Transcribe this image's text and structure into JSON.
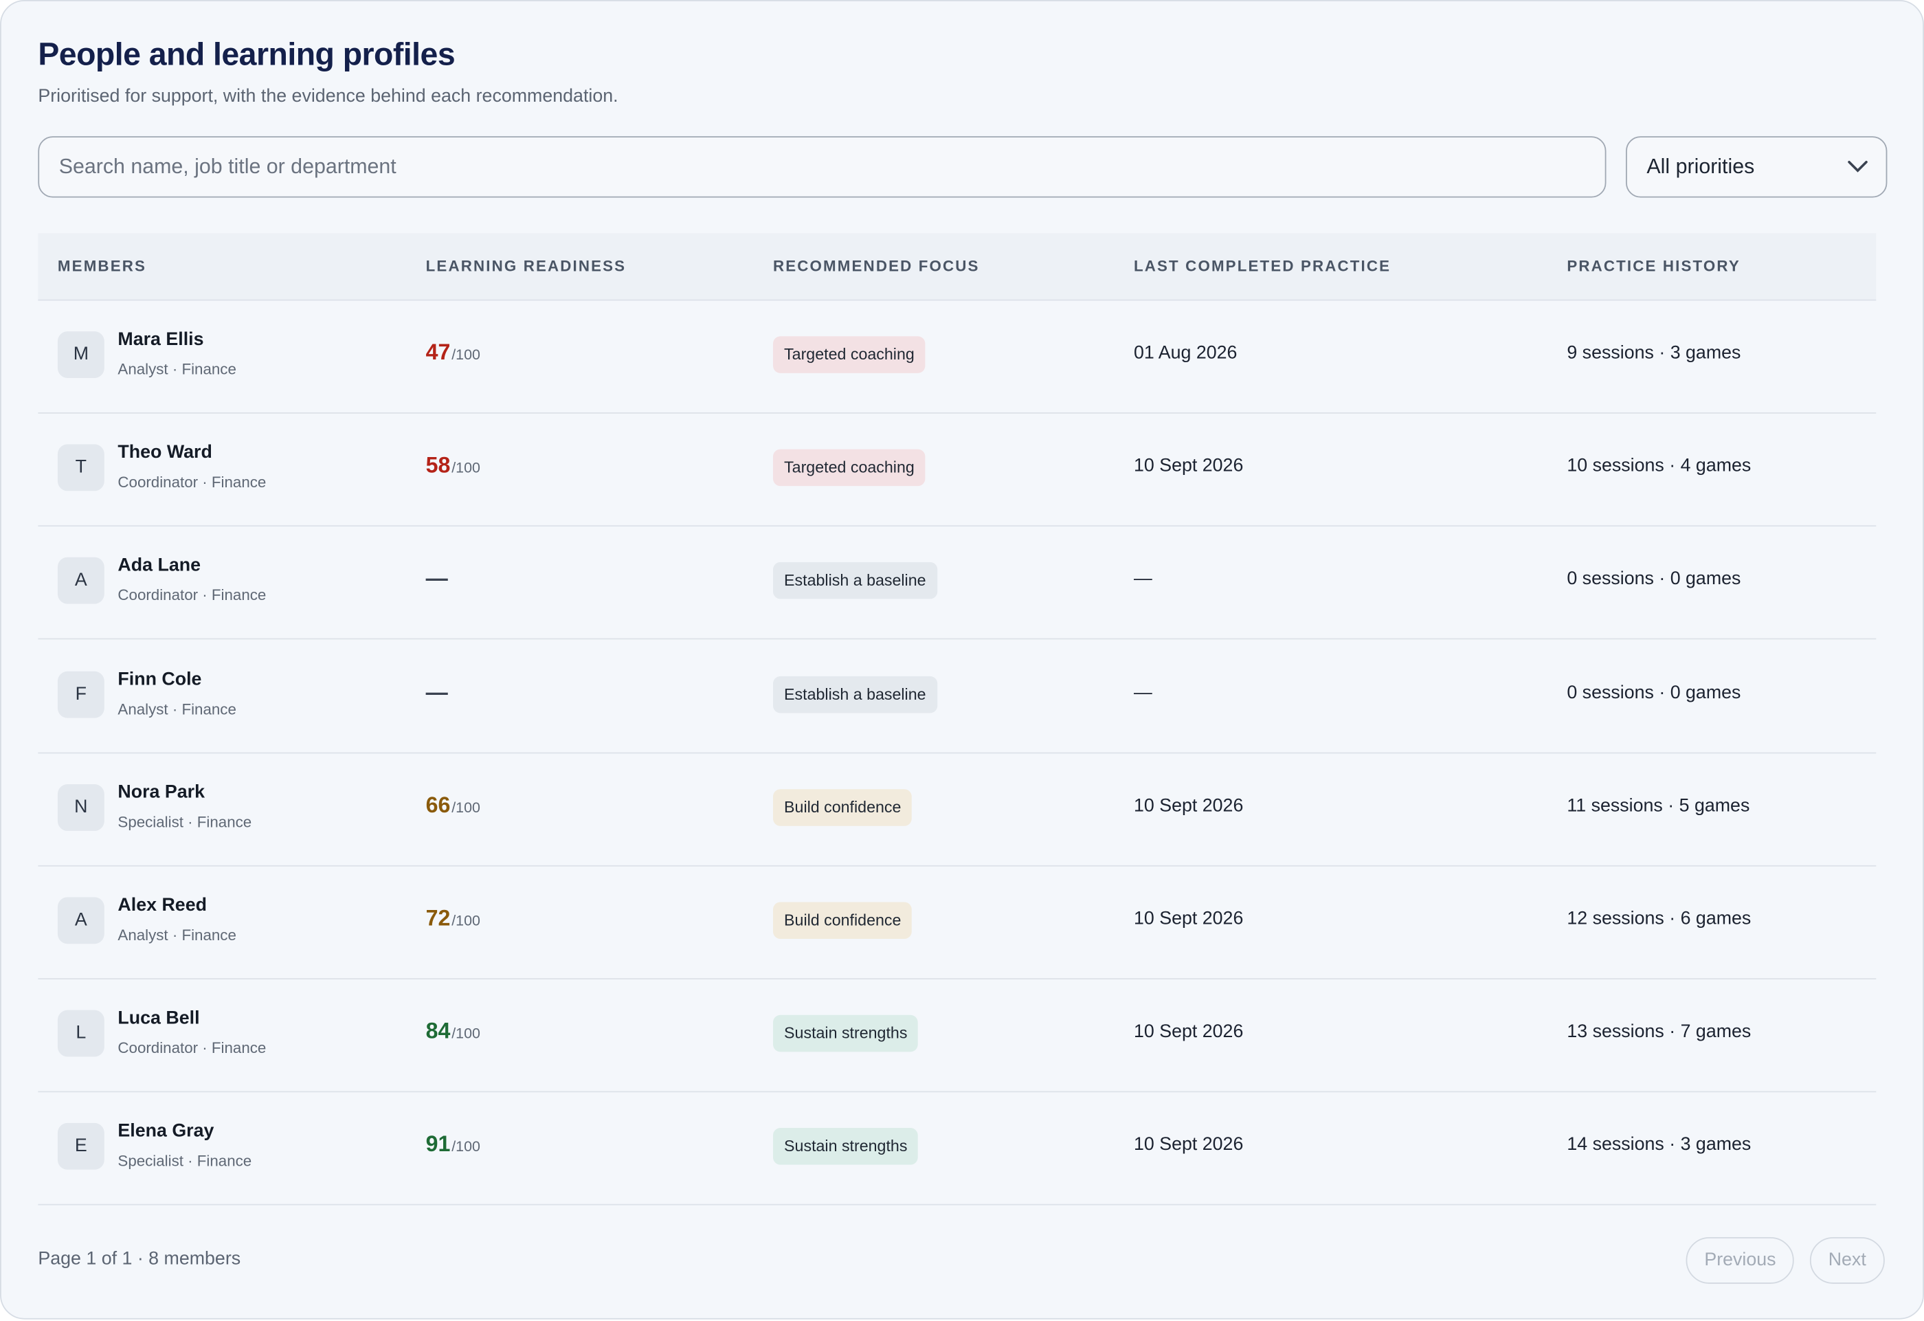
{
  "header": {
    "title": "People and learning profiles",
    "subtitle": "Prioritised for support, with the evidence behind each recommendation."
  },
  "filters": {
    "search_placeholder": "Search name, job title or department",
    "priority": "All priorities"
  },
  "table": {
    "columns": [
      "MEMBERS",
      "LEARNING READINESS",
      "RECOMMENDED FOCUS",
      "LAST COMPLETED PRACTICE",
      "PRACTICE HISTORY"
    ],
    "rows": [
      {
        "initial": "M",
        "name": "Mara Ellis",
        "role": "Analyst · Finance",
        "score": "47",
        "score_max": "/100",
        "score_color": "#b42318",
        "focus": "Targeted coaching",
        "focus_color": "#f3e1e4",
        "last_practice": "01 Aug 2026",
        "history": "9 sessions · 3 games"
      },
      {
        "initial": "T",
        "name": "Theo Ward",
        "role": "Coordinator · Finance",
        "score": "58",
        "score_max": "/100",
        "score_color": "#b42318",
        "focus": "Targeted coaching",
        "focus_color": "#f3e1e4",
        "last_practice": "10 Sept 2026",
        "history": "10 sessions · 4 games"
      },
      {
        "initial": "A",
        "name": "Ada Lane",
        "role": "Coordinator · Finance",
        "score": "—",
        "score_color": "#3a4250",
        "focus": "Establish a baseline",
        "focus_color": "#e4e9ee",
        "last_practice": "—",
        "history": "0 sessions · 0 games"
      },
      {
        "initial": "F",
        "name": "Finn Cole",
        "role": "Analyst · Finance",
        "score": "—",
        "score_color": "#3a4250",
        "focus": "Establish a baseline",
        "focus_color": "#e4e9ee",
        "last_practice": "—",
        "history": "0 sessions · 0 games"
      },
      {
        "initial": "N",
        "name": "Nora Park",
        "role": "Specialist · Finance",
        "score": "66",
        "score_max": "/100",
        "score_color": "#8a5a0b",
        "focus": "Build confidence",
        "focus_color": "#f2ebdd",
        "last_practice": "10 Sept 2026",
        "history": "11 sessions · 5 games"
      },
      {
        "initial": "A",
        "name": "Alex Reed",
        "role": "Analyst · Finance",
        "score": "72",
        "score_max": "/100",
        "score_color": "#8a5a0b",
        "focus": "Build confidence",
        "focus_color": "#f2ebdd",
        "last_practice": "10 Sept 2026",
        "history": "12 sessions · 6 games"
      },
      {
        "initial": "L",
        "name": "Luca Bell",
        "role": "Coordinator · Finance",
        "score": "84",
        "score_max": "/100",
        "score_color": "#1e6b35",
        "focus": "Sustain strengths",
        "focus_color": "#dcede9",
        "last_practice": "10 Sept 2026",
        "history": "13 sessions · 7 games"
      },
      {
        "initial": "E",
        "name": "Elena Gray",
        "role": "Specialist · Finance",
        "score": "91",
        "score_max": "/100",
        "score_color": "#1e6b35",
        "focus": "Sustain strengths",
        "focus_color": "#dcede9",
        "last_practice": "10 Sept 2026",
        "history": "14 sessions · 3 games"
      }
    ]
  },
  "footer": {
    "summary": "Page 1 of 1 · 8 members",
    "previous": "Previous",
    "next": "Next"
  }
}
